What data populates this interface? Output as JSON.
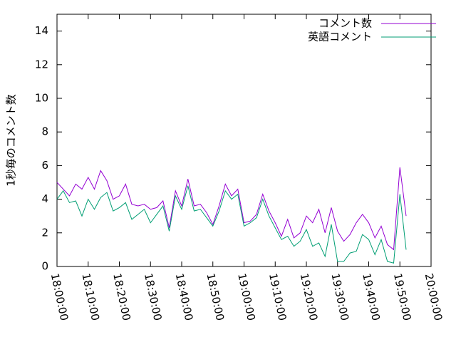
{
  "chart_data": {
    "type": "line",
    "ylabel": "1秒毎のコメント数",
    "x": [
      "18:00:00",
      "18:02:00",
      "18:04:00",
      "18:06:00",
      "18:08:00",
      "18:10:00",
      "18:12:00",
      "18:14:00",
      "18:16:00",
      "18:18:00",
      "18:20:00",
      "18:22:00",
      "18:24:00",
      "18:26:00",
      "18:28:00",
      "18:30:00",
      "18:32:00",
      "18:34:00",
      "18:36:00",
      "18:38:00",
      "18:40:00",
      "18:42:00",
      "18:44:00",
      "18:46:00",
      "18:48:00",
      "18:50:00",
      "18:52:00",
      "18:54:00",
      "18:56:00",
      "18:58:00",
      "19:00:00",
      "19:02:00",
      "19:04:00",
      "19:06:00",
      "19:08:00",
      "19:10:00",
      "19:12:00",
      "19:14:00",
      "19:16:00",
      "19:18:00",
      "19:20:00",
      "19:22:00",
      "19:24:00",
      "19:26:00",
      "19:28:00",
      "19:30:00",
      "19:32:00",
      "19:34:00",
      "19:36:00",
      "19:38:00",
      "19:40:00",
      "19:42:00",
      "19:44:00",
      "19:46:00",
      "19:48:00",
      "19:50:00",
      "19:52:00"
    ],
    "series": [
      {
        "name": "コメント数",
        "color": "#9400d3",
        "values": [
          5.0,
          4.6,
          4.2,
          4.9,
          4.6,
          5.3,
          4.6,
          5.7,
          5.1,
          4.0,
          4.2,
          4.9,
          3.7,
          3.6,
          3.7,
          3.4,
          3.5,
          3.9,
          2.3,
          4.5,
          3.6,
          5.2,
          3.6,
          3.7,
          3.2,
          2.5,
          3.6,
          4.9,
          4.2,
          4.6,
          2.6,
          2.7,
          3.1,
          4.3,
          3.3,
          2.6,
          1.8,
          2.8,
          1.7,
          2.0,
          3.0,
          2.6,
          3.4,
          2.0,
          3.5,
          2.1,
          1.5,
          1.9,
          2.6,
          3.1,
          2.6,
          1.7,
          2.4,
          1.3,
          1.0,
          5.9,
          3.0
        ]
      },
      {
        "name": "英語コメント",
        "color": "#009e73",
        "values": [
          4.0,
          4.5,
          3.8,
          3.9,
          3.0,
          4.0,
          3.4,
          4.1,
          4.4,
          3.3,
          3.5,
          3.8,
          2.8,
          3.1,
          3.4,
          2.6,
          3.1,
          3.6,
          2.1,
          4.2,
          3.4,
          4.8,
          3.3,
          3.4,
          2.9,
          2.4,
          3.3,
          4.5,
          4.0,
          4.3,
          2.4,
          2.6,
          2.9,
          4.0,
          3.0,
          2.3,
          1.6,
          1.8,
          1.2,
          1.5,
          2.2,
          1.2,
          1.4,
          0.6,
          2.5,
          0.3,
          0.3,
          0.8,
          0.9,
          1.9,
          1.6,
          0.7,
          1.6,
          0.3,
          0.2,
          4.3,
          1.0
        ]
      }
    ],
    "xlim": [
      "18:00:00",
      "20:00:00"
    ],
    "xticks": [
      "18:00:00",
      "18:10:00",
      "18:20:00",
      "18:30:00",
      "18:40:00",
      "18:50:00",
      "19:00:00",
      "19:10:00",
      "19:20:00",
      "19:30:00",
      "19:40:00",
      "19:50:00",
      "20:00:00"
    ],
    "ylim": [
      0,
      15
    ],
    "yticks": [
      0,
      2,
      4,
      6,
      8,
      10,
      12,
      14
    ],
    "grid": false,
    "legend": "top-right"
  }
}
